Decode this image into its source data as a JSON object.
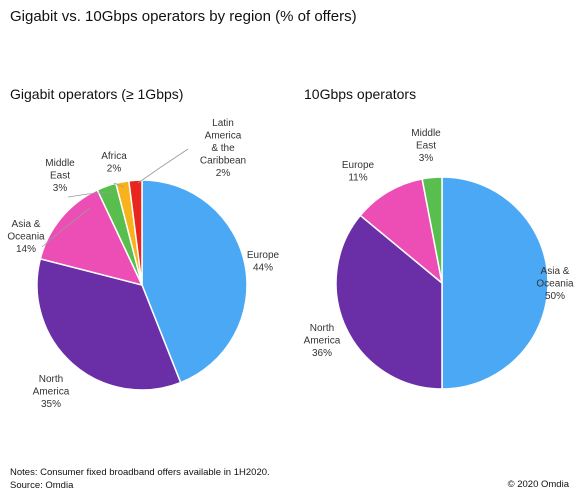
{
  "title": "Gigabit vs. 10Gbps operators by region (% of offers)",
  "notes": "Notes: Consumer fixed broadband offers available in 1H2020.",
  "source": "Source: Omdia",
  "copyright": "© 2020 Omdia",
  "chart_data": [
    {
      "type": "pie",
      "title": "Gigabit operators (≥ 1Gbps)",
      "slices": [
        {
          "name": "Europe",
          "value": 44,
          "color": "#4BA8F5",
          "label_lines": [
            "Europe",
            "44%"
          ]
        },
        {
          "name": "North America",
          "value": 35,
          "color": "#6A2EA7",
          "label_lines": [
            "North",
            "America",
            "35%"
          ]
        },
        {
          "name": "Asia & Oceania",
          "value": 14,
          "color": "#EC4EB6",
          "label_lines": [
            "Asia &",
            "Oceania",
            "14%"
          ]
        },
        {
          "name": "Middle East",
          "value": 3,
          "color": "#58BF4F",
          "label_lines": [
            "Middle",
            "East",
            "3%"
          ]
        },
        {
          "name": "Africa",
          "value": 2,
          "color": "#F7B21C",
          "label_lines": [
            "Africa",
            "2%"
          ]
        },
        {
          "name": "Latin America & the Caribbean",
          "value": 2,
          "color": "#E8261E",
          "label_lines": [
            "Latin",
            "America",
            "& the",
            "Caribbean",
            "2%"
          ]
        }
      ]
    },
    {
      "type": "pie",
      "title": "10Gbps operators",
      "slices": [
        {
          "name": "Asia & Oceania",
          "value": 50,
          "color": "#4BA8F5",
          "label_lines": [
            "Asia &",
            "Oceania",
            "50%"
          ]
        },
        {
          "name": "North America",
          "value": 36,
          "color": "#6A2EA7",
          "label_lines": [
            "North",
            "America",
            "36%"
          ]
        },
        {
          "name": "Europe",
          "value": 11,
          "color": "#EC4EB6",
          "label_lines": [
            "Europe",
            "11%"
          ]
        },
        {
          "name": "Middle East",
          "value": 3,
          "color": "#58BF4F",
          "label_lines": [
            "Middle",
            "East",
            "3%"
          ]
        }
      ]
    }
  ]
}
